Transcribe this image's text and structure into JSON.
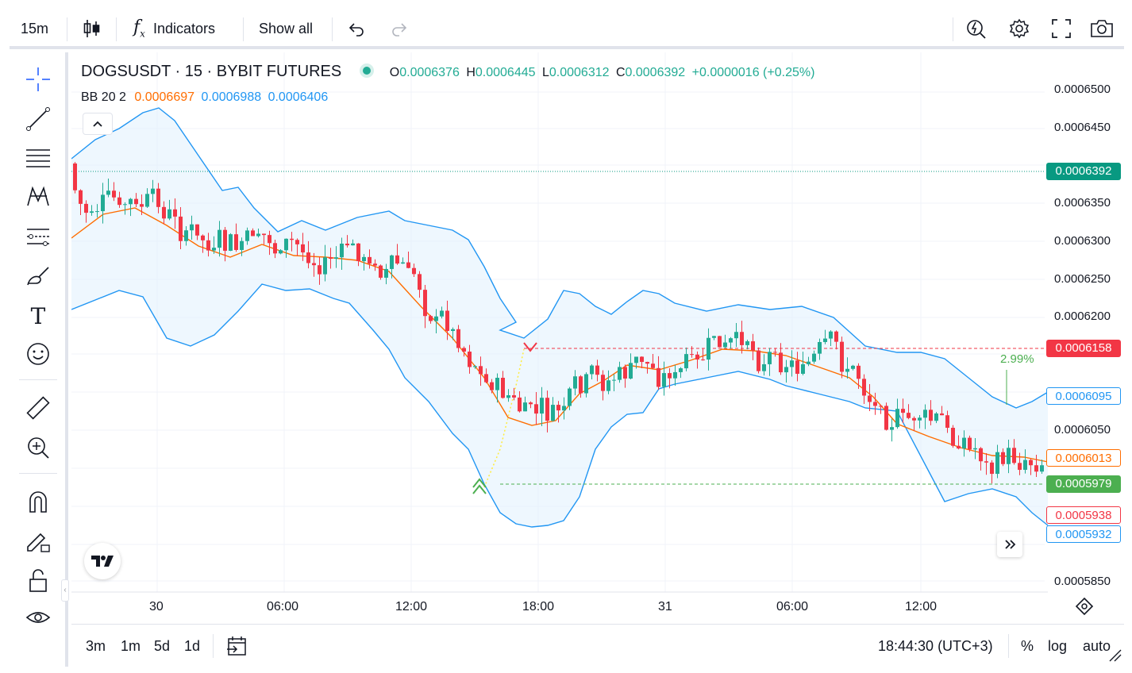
{
  "toolbar": {
    "interval": "15m",
    "indicators_label": "Indicators",
    "show_all_label": "Show all"
  },
  "legend": {
    "symbol": "DOGSUSDT · 15 · BYBIT FUTURES",
    "o_label": "O",
    "o_value": "0.0006376",
    "h_label": "H",
    "h_value": "0.0006445",
    "l_label": "L",
    "l_value": "0.0006312",
    "c_label": "C",
    "c_value": "0.0006392",
    "change": "+0.0000016 (+0.25%)",
    "bb_label": "BB 20 2",
    "bb_basis": "0.0006697",
    "bb_upper": "0.0006988",
    "bb_lower": "0.0006406"
  },
  "price_axis": {
    "ticks": [
      "0.0006500",
      "0.0006450",
      "0.0006350",
      "0.0006300",
      "0.0006250",
      "0.0006200",
      "0.0006050",
      "0.0005850"
    ],
    "last_price": "0.0006392",
    "red_line": "0.0006158",
    "bb_upper_now": "0.0006095",
    "bb_basis_now": "0.0006013",
    "green_line": "0.0005979",
    "low_now": "0.0005938",
    "bb_lower_now": "0.0005932"
  },
  "time_axis": [
    "30",
    "06:00",
    "12:00",
    "18:00",
    "31",
    "06:00",
    "12:00"
  ],
  "annotation_pct": "2.99%",
  "bottom": {
    "ranges": [
      "3m",
      "1m",
      "5d",
      "1d"
    ],
    "clock": "18:44:30 (UTC+3)",
    "pct": "%",
    "log": "log",
    "auto": "auto"
  },
  "colors": {
    "up": "#22ab94",
    "down": "#f23645",
    "bb_band": "#2196f3",
    "bb_basis": "#ff6d00",
    "bb_fill": "#e3f2fd"
  }
}
